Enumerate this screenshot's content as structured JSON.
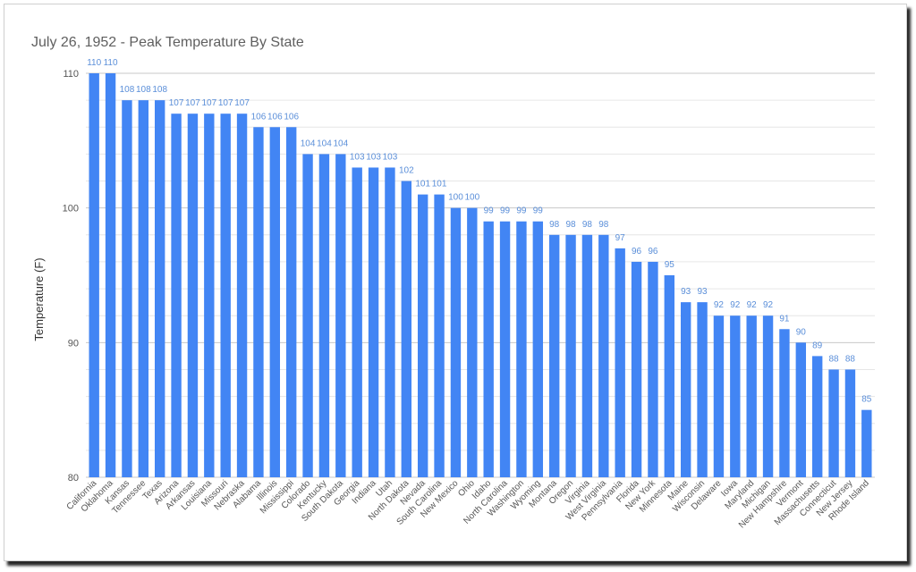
{
  "chart_data": {
    "type": "bar",
    "title": "July 26, 1952 - Peak Temperature By State",
    "xlabel": "",
    "ylabel": "Temperature (F)",
    "ylim": [
      80,
      110
    ],
    "yticks": [
      80,
      90,
      100,
      110
    ],
    "minor_grid_step": 2,
    "grid": true,
    "bar_color": "#4285f4",
    "label_color": "#5b8fd9",
    "categories": [
      "California",
      "Oklahoma",
      "Kansas",
      "Tennessee",
      "Texas",
      "Arizona",
      "Arkansas",
      "Louisiana",
      "Missouri",
      "Nebraska",
      "Alabama",
      "Illinois",
      "Mississippi",
      "Colorado",
      "Kentucky",
      "South Dakota",
      "Georgia",
      "Indiana",
      "Utah",
      "North Dakota",
      "Nevada",
      "South Carolina",
      "New Mexico",
      "Ohio",
      "Idaho",
      "North Carolina",
      "Washington",
      "Wyoming",
      "Montana",
      "Oregon",
      "Virginia",
      "West Virginia",
      "Pennsylvania",
      "Florida",
      "New York",
      "Minnesota",
      "Maine",
      "Wisconsin",
      "Delaware",
      "Iowa",
      "Maryland",
      "Michigan",
      "New Hampshire",
      "Vermont",
      "Massachusetts",
      "Connecticut",
      "New Jersey",
      "Rhode Island"
    ],
    "values": [
      110,
      110,
      108,
      108,
      108,
      107,
      107,
      107,
      107,
      107,
      106,
      106,
      106,
      104,
      104,
      104,
      103,
      103,
      103,
      102,
      101,
      101,
      100,
      100,
      99,
      99,
      99,
      99,
      98,
      98,
      98,
      98,
      97,
      96,
      96,
      95,
      93,
      93,
      92,
      92,
      92,
      92,
      91,
      90,
      89,
      88,
      88,
      85
    ]
  }
}
